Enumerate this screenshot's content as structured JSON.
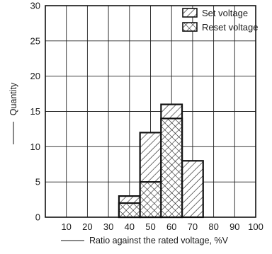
{
  "chart_data": {
    "type": "bar",
    "title": "",
    "xlabel": "Ratio against the rated voltage, %V",
    "ylabel": "Quantity",
    "xlim": [
      0,
      100
    ],
    "ylim": [
      0,
      30
    ],
    "x_ticks": [
      10,
      20,
      30,
      40,
      50,
      60,
      70,
      80,
      90,
      100
    ],
    "y_ticks": [
      0,
      5,
      10,
      15,
      20,
      25,
      30
    ],
    "grid": true,
    "legend_position": "top-right",
    "bin_width": 10,
    "series": [
      {
        "name": "Set voltage",
        "pattern": "diagonal-hatch",
        "bins": [
          {
            "x": 40,
            "value": 3
          },
          {
            "x": 50,
            "value": 12
          },
          {
            "x": 60,
            "value": 16
          },
          {
            "x": 70,
            "value": 8
          }
        ]
      },
      {
        "name": "Reset voltage",
        "pattern": "cross-hatch",
        "bins": [
          {
            "x": 40,
            "value": 2
          },
          {
            "x": 50,
            "value": 5
          },
          {
            "x": 60,
            "value": 14
          }
        ]
      }
    ]
  }
}
